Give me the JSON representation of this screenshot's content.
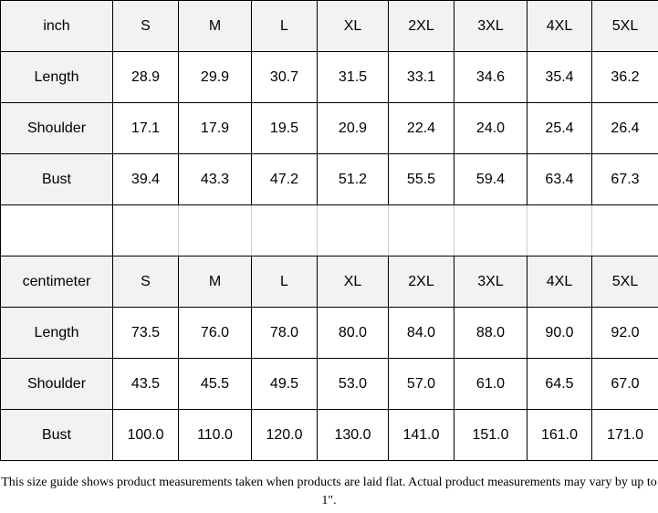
{
  "inch_table": {
    "header": [
      "inch",
      "S",
      "M",
      "L",
      "XL",
      "2XL",
      "3XL",
      "4XL",
      "5XL"
    ],
    "rows": [
      [
        "Length",
        "28.9",
        "29.9",
        "30.7",
        "31.5",
        "33.1",
        "34.6",
        "35.4",
        "36.2"
      ],
      [
        "Shoulder",
        "17.1",
        "17.9",
        "19.5",
        "20.9",
        "22.4",
        "24.0",
        "25.4",
        "26.4"
      ],
      [
        "Bust",
        "39.4",
        "43.3",
        "47.2",
        "51.2",
        "55.5",
        "59.4",
        "63.4",
        "67.3"
      ]
    ]
  },
  "cm_table": {
    "header": [
      "centimeter",
      "S",
      "M",
      "L",
      "XL",
      "2XL",
      "3XL",
      "4XL",
      "5XL"
    ],
    "rows": [
      [
        "Length",
        "73.5",
        "76.0",
        "78.0",
        "80.0",
        "84.0",
        "88.0",
        "90.0",
        "92.0"
      ],
      [
        "Shoulder",
        "43.5",
        "45.5",
        "49.5",
        "53.0",
        "57.0",
        "61.0",
        "64.5",
        "67.0"
      ],
      [
        "Bust",
        "100.0",
        "110.0",
        "120.0",
        "130.0",
        "141.0",
        "151.0",
        "161.0",
        "171.0"
      ]
    ]
  },
  "note": "This size guide shows product measurements taken when products are laid flat. Actual product measurements may vary by up to 1\"."
}
